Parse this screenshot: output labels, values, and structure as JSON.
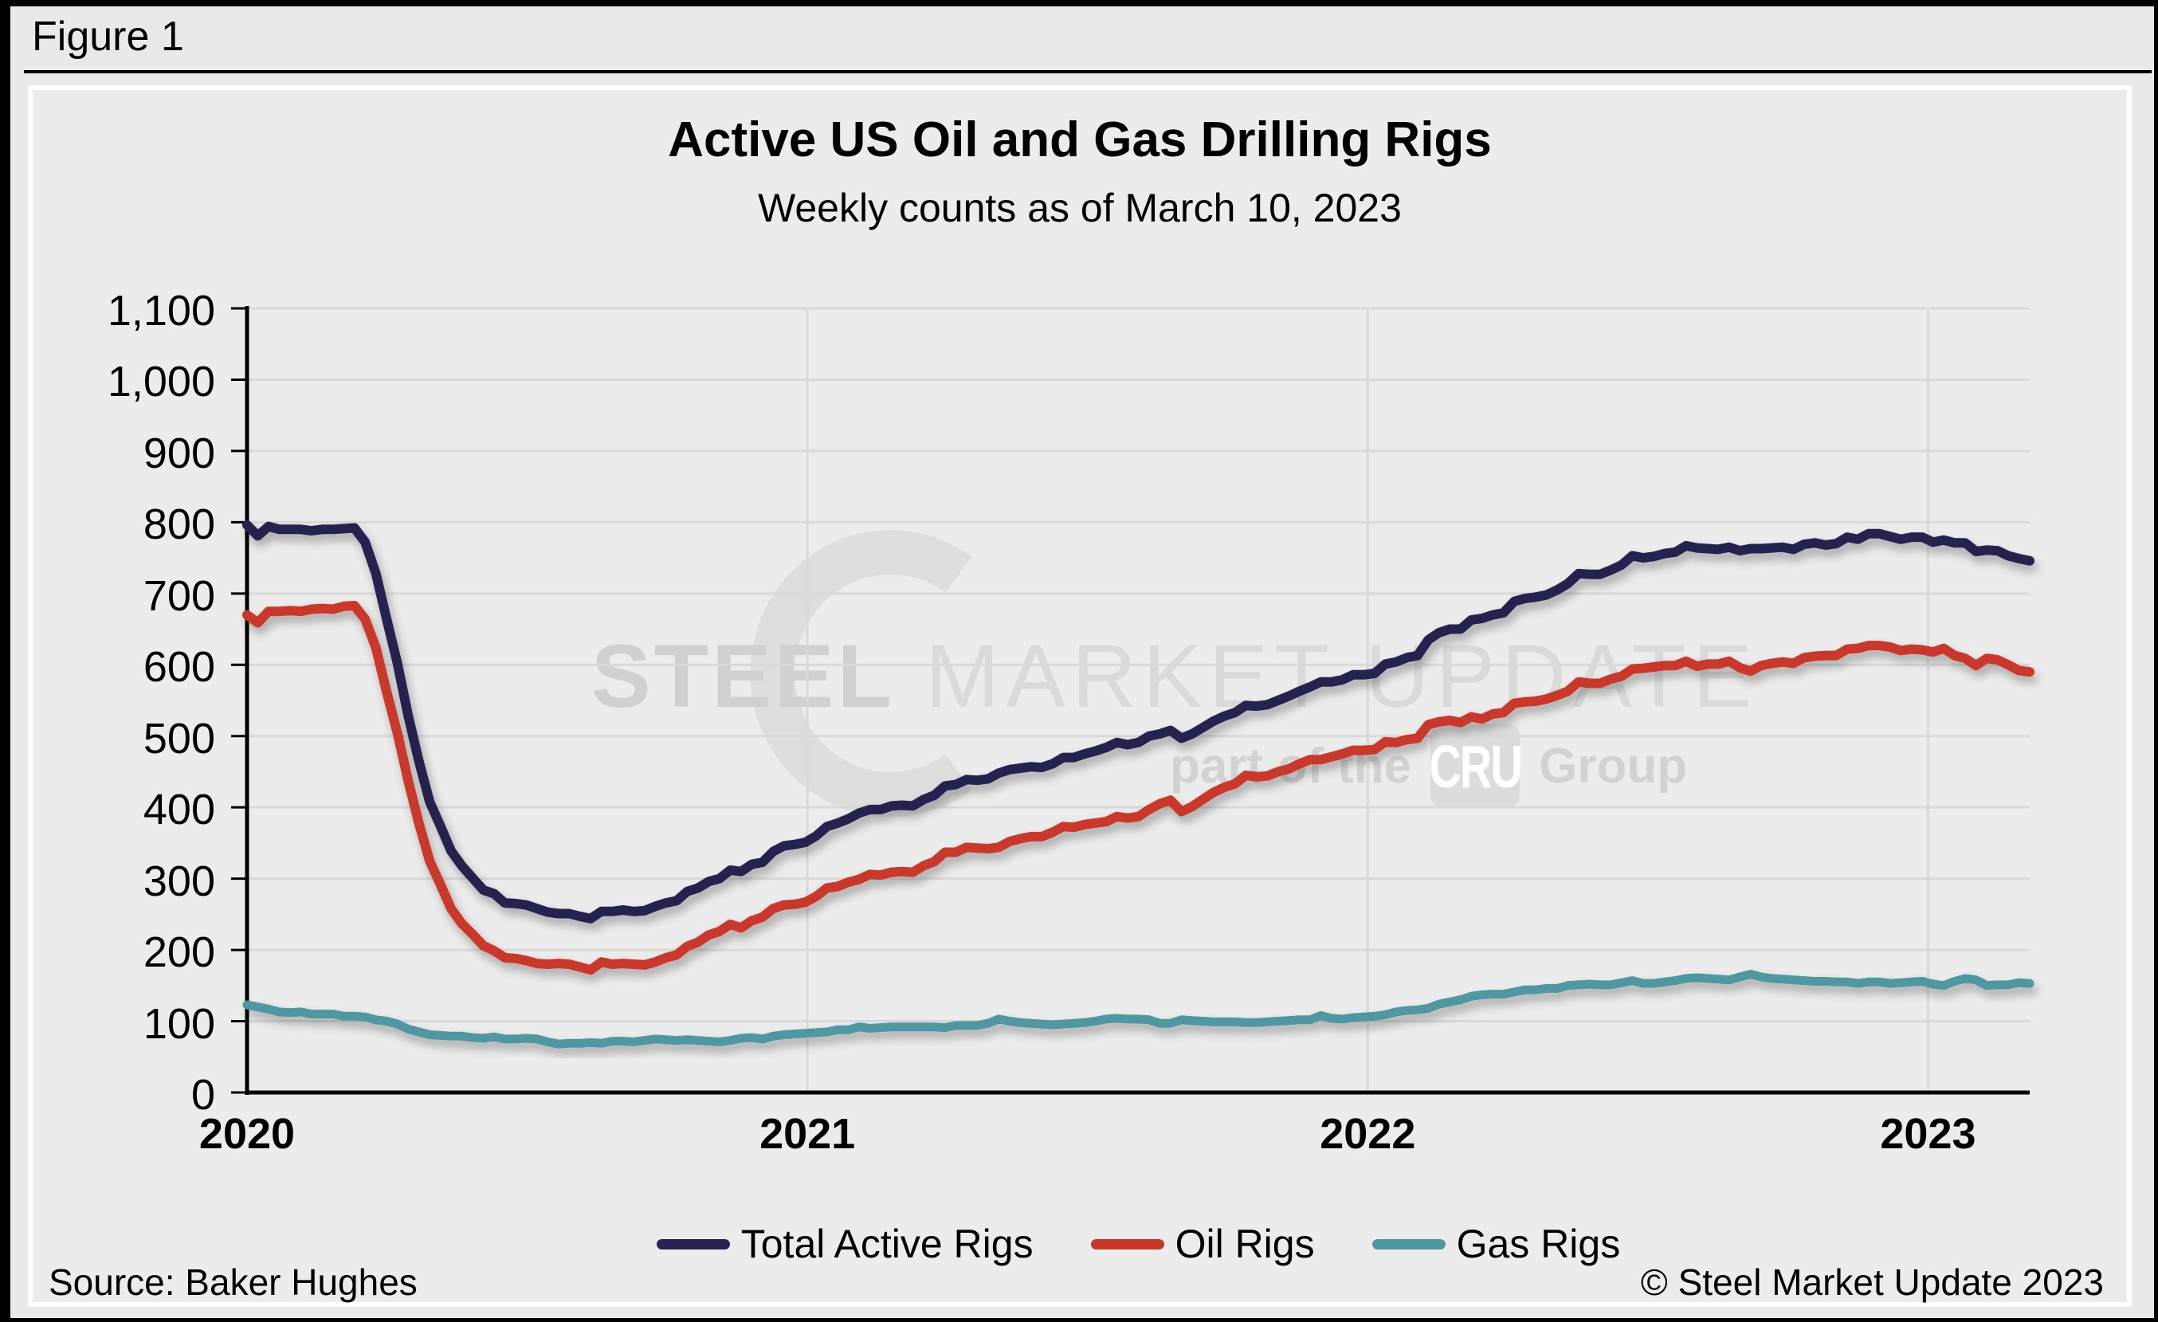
{
  "window": {
    "figure_label": "Figure 1"
  },
  "chart": {
    "title": "Active US Oil and Gas Drilling Rigs",
    "subtitle": "Weekly counts as of March 10, 2023",
    "source": "Source: Baker Hughes",
    "copyright": "© Steel Market Update 2023",
    "watermark": {
      "line1_bold": "STEEL",
      "line1_rest": "MARKET UPDATE",
      "line2_prefix": "part of the",
      "line2_box": "CRU",
      "line2_suffix": "Group"
    },
    "colors": {
      "background": "#ececec",
      "panel_border": "#ffffff",
      "grid": "#d9d9d9",
      "axis": "#000000",
      "total_rigs": "#27224f",
      "oil_rigs": "#c9372a",
      "gas_rigs": "#4f98a2",
      "watermark_gray": "#d4d4d4"
    }
  },
  "chart_data": {
    "type": "line",
    "title": "Active US Oil and Gas Drilling Rigs",
    "subtitle": "Weekly counts as of March 10, 2023",
    "xlabel": "",
    "ylabel": "",
    "x_start_date": "2020-01-03",
    "x_end_date": "2023-03-10",
    "x_interval": "weekly",
    "x_tick_years": [
      2020,
      2021,
      2022,
      2023
    ],
    "x_tick_labels": [
      "2020",
      "2021",
      "2022",
      "2023"
    ],
    "y_tick_values": [
      0,
      100,
      200,
      300,
      400,
      500,
      600,
      700,
      800,
      900,
      1000,
      1100
    ],
    "y_tick_labels": [
      "0",
      "100",
      "200",
      "300",
      "400",
      "500",
      "600",
      "700",
      "800",
      "900",
      "1,000",
      "1,100"
    ],
    "ylim": [
      0,
      1100
    ],
    "grid": true,
    "legend_position": "bottom",
    "series": [
      {
        "name": "Total Active Rigs",
        "color": "#27224f",
        "values": [
          796,
          781,
          794,
          790,
          790,
          790,
          788,
          790,
          790,
          791,
          792,
          772,
          728,
          664,
          602,
          529,
          465,
          408,
          374,
          339,
          318,
          301,
          284,
          279,
          266,
          265,
          263,
          258,
          253,
          251,
          251,
          247,
          244,
          254,
          254,
          256,
          254,
          255,
          261,
          266,
          269,
          282,
          287,
          296,
          300,
          312,
          310,
          320,
          323,
          338,
          346,
          348,
          351,
          360,
          373,
          378,
          384,
          392,
          397,
          397,
          402,
          403,
          402,
          411,
          417,
          430,
          432,
          439,
          438,
          440,
          448,
          453,
          455,
          457,
          456,
          461,
          470,
          470,
          475,
          479,
          484,
          491,
          488,
          491,
          500,
          503,
          508,
          497,
          503,
          512,
          521,
          528,
          533,
          543,
          542,
          544,
          550,
          556,
          563,
          569,
          576,
          576,
          579,
          586,
          586,
          588,
          601,
          604,
          610,
          613,
          635,
          645,
          650,
          650,
          663,
          665,
          670,
          673,
          689,
          693,
          695,
          698,
          705,
          714,
          728,
          727,
          727,
          733,
          740,
          753,
          750,
          752,
          756,
          758,
          767,
          764,
          763,
          762,
          765,
          760,
          763,
          763,
          764,
          765,
          762,
          769,
          771,
          768,
          770,
          779,
          776,
          784,
          784,
          780,
          776,
          779,
          779,
          772,
          775,
          771,
          771,
          759,
          761,
          760,
          753,
          749,
          746
        ]
      },
      {
        "name": "Oil Rigs",
        "color": "#c9372a",
        "values": [
          670,
          659,
          675,
          675,
          676,
          675,
          678,
          679,
          678,
          682,
          683,
          664,
          624,
          562,
          504,
          438,
          378,
          325,
          292,
          258,
          237,
          222,
          206,
          199,
          189,
          188,
          185,
          181,
          180,
          181,
          180,
          176,
          172,
          183,
          180,
          181,
          180,
          179,
          183,
          189,
          193,
          205,
          211,
          221,
          226,
          236,
          231,
          241,
          246,
          258,
          263,
          264,
          267,
          275,
          287,
          289,
          295,
          299,
          306,
          305,
          309,
          310,
          309,
          318,
          324,
          337,
          337,
          344,
          343,
          342,
          344,
          352,
          356,
          359,
          359,
          365,
          373,
          372,
          376,
          378,
          380,
          387,
          385,
          387,
          397,
          405,
          410,
          394,
          401,
          411,
          421,
          428,
          433,
          445,
          443,
          444,
          450,
          454,
          461,
          467,
          467,
          471,
          475,
          480,
          480,
          481,
          492,
          491,
          495,
          497,
          516,
          520,
          522,
          519,
          527,
          524,
          531,
          533,
          546,
          548,
          549,
          552,
          557,
          563,
          576,
          574,
          574,
          580,
          584,
          594,
          595,
          597,
          599,
          599,
          605,
          598,
          601,
          601,
          605,
          596,
          591,
          599,
          602,
          604,
          602,
          610,
          612,
          613,
          613,
          622,
          623,
          627,
          627,
          625,
          620,
          622,
          621,
          618,
          623,
          613,
          609,
          599,
          609,
          607,
          600,
          592,
          590
        ]
      },
      {
        "name": "Gas Rigs",
        "color": "#4f98a2",
        "values": [
          123,
          120,
          117,
          113,
          112,
          113,
          110,
          110,
          110,
          107,
          107,
          106,
          102,
          100,
          96,
          89,
          85,
          81,
          80,
          79,
          79,
          77,
          76,
          78,
          75,
          75,
          76,
          75,
          71,
          68,
          69,
          69,
          70,
          69,
          72,
          72,
          71,
          73,
          75,
          74,
          73,
          74,
          73,
          72,
          71,
          73,
          76,
          77,
          75,
          79,
          81,
          82,
          83,
          84,
          85,
          88,
          88,
          92,
          90,
          91,
          92,
          92,
          92,
          92,
          92,
          91,
          94,
          94,
          94,
          97,
          103,
          100,
          98,
          97,
          96,
          95,
          96,
          97,
          98,
          100,
          103,
          104,
          103,
          103,
          102,
          97,
          97,
          102,
          101,
          100,
          99,
          99,
          99,
          98,
          98,
          99,
          100,
          101,
          102,
          102,
          108,
          104,
          103,
          105,
          106,
          107,
          109,
          113,
          115,
          116,
          118,
          124,
          127,
          130,
          135,
          137,
          138,
          138,
          141,
          144,
          144,
          146,
          146,
          150,
          151,
          152,
          151,
          151,
          154,
          157,
          153,
          153,
          155,
          157,
          160,
          161,
          160,
          159,
          158,
          162,
          166,
          162,
          160,
          159,
          158,
          157,
          156,
          156,
          155,
          155,
          153,
          155,
          155,
          153,
          154,
          155,
          156,
          152,
          150,
          156,
          160,
          158,
          150,
          151,
          151,
          154,
          153
        ]
      }
    ]
  }
}
